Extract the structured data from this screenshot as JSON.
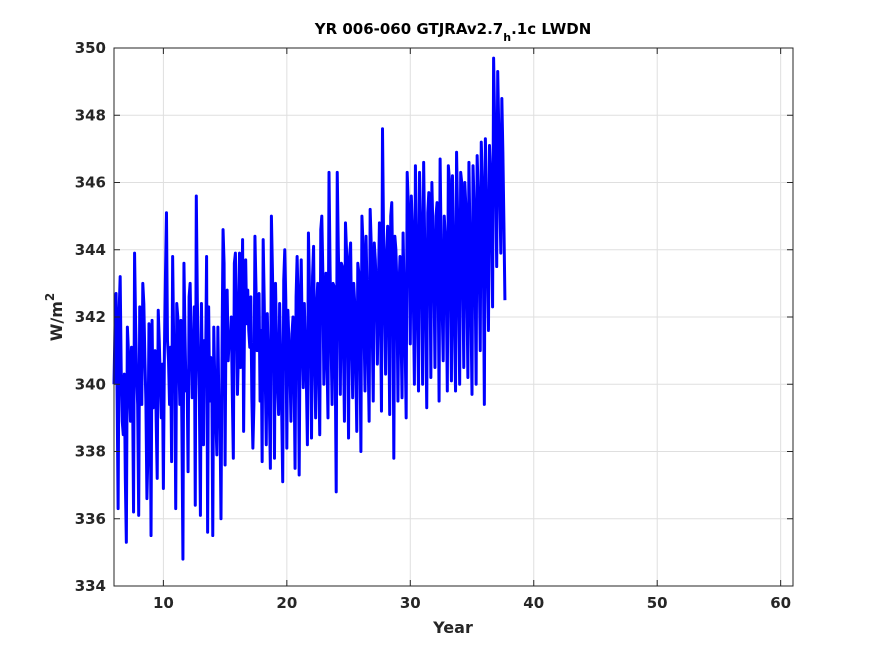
{
  "chart_data": {
    "type": "line",
    "title": {
      "pre": "YR 006-060 GTJRAv2.7",
      "sub": "h",
      "post": ".1c LWDN"
    },
    "xlabel": "Year",
    "ylabel": {
      "base": "W/m",
      "sup": "2"
    },
    "xlim": [
      6,
      61
    ],
    "ylim": [
      334,
      350
    ],
    "xticks": [
      10,
      20,
      30,
      40,
      50,
      60
    ],
    "yticks": [
      334,
      336,
      338,
      340,
      342,
      344,
      346,
      348,
      350
    ],
    "grid": true,
    "line_color": "#0000ff",
    "series": [
      {
        "sampling": "monthly",
        "x_start": 6,
        "x_step": 0.08333,
        "values": [
          340.0,
          341.8,
          342.7,
          339.8,
          336.3,
          342.2,
          343.2,
          340.4,
          338.9,
          338.5,
          340.3,
          337.2,
          335.3,
          341.7,
          341.0,
          339.8,
          338.9,
          341.1,
          340.0,
          336.2,
          343.9,
          341.8,
          340.3,
          339.4,
          336.1,
          342.3,
          340.6,
          339.4,
          343.0,
          342.4,
          340.8,
          339.5,
          336.6,
          338.0,
          341.8,
          341.0,
          335.5,
          341.9,
          339.3,
          340.9,
          341.0,
          338.9,
          337.2,
          342.2,
          341.3,
          340.1,
          339.0,
          340.6,
          336.9,
          341.0,
          343.2,
          345.1,
          341.3,
          340.7,
          339.4,
          341.1,
          337.7,
          343.8,
          341.3,
          341.0,
          336.3,
          342.4,
          342.0,
          340.8,
          339.4,
          341.9,
          338.7,
          334.8,
          343.6,
          341.5,
          339.8,
          340.4,
          337.4,
          342.6,
          343.0,
          341.2,
          339.6,
          340.1,
          342.3,
          336.4,
          345.6,
          342.5,
          340.9,
          339.5,
          336.1,
          342.4,
          339.8,
          338.2,
          341.3,
          340.4,
          343.8,
          335.6,
          342.3,
          339.5,
          340.8,
          340.6,
          335.5,
          341.7,
          340.0,
          339.0,
          337.9,
          341.7,
          339.2,
          339.1,
          336.0,
          341.0,
          344.6,
          343.6,
          337.6,
          342.7,
          342.8,
          340.7,
          341.4,
          341.2,
          342.0,
          339.7,
          337.8,
          343.6,
          343.9,
          342.2,
          339.7,
          341.0,
          343.9,
          340.5,
          341.7,
          344.3,
          338.6,
          342.5,
          343.7,
          341.8,
          342.8,
          341.6,
          341.1,
          342.6,
          339.6,
          338.1,
          339.4,
          344.4,
          342.9,
          341.0,
          342.5,
          342.7,
          339.5,
          341.6,
          337.7,
          344.3,
          342.5,
          340.3,
          338.2,
          342.1,
          340.8,
          339.4,
          337.5,
          345.0,
          343.4,
          341.5,
          337.8,
          343.0,
          341.2,
          340.0,
          339.1,
          342.4,
          340.8,
          339.2,
          337.1,
          343.1,
          344.0,
          342.5,
          338.1,
          342.2,
          341.3,
          340.6,
          338.9,
          341.5,
          342.0,
          340.4,
          337.5,
          342.6,
          343.8,
          342.4,
          337.3,
          342.1,
          343.7,
          341.3,
          339.9,
          342.4,
          341.1,
          340.1,
          338.2,
          344.5,
          342.9,
          341.3,
          338.4,
          343.2,
          344.1,
          340.8,
          339.0,
          342.3,
          343.0,
          340.4,
          338.5,
          344.6,
          345.0,
          343.3,
          340.0,
          341.6,
          343.3,
          340.8,
          339.0,
          346.3,
          343.5,
          341.3,
          339.4,
          343.0,
          342.9,
          340.7,
          336.8,
          346.3,
          344.1,
          342.4,
          339.7,
          343.6,
          343.5,
          341.2,
          338.9,
          344.8,
          344.0,
          341.6,
          338.4,
          343.8,
          344.2,
          341.4,
          339.6,
          343.0,
          342.4,
          340.6,
          338.6,
          343.6,
          343.3,
          341.4,
          338.0,
          345.0,
          344.2,
          341.8,
          339.8,
          344.4,
          342.7,
          340.8,
          338.9,
          345.2,
          344.2,
          341.7,
          339.5,
          344.2,
          343.7,
          342.8,
          340.6,
          342.9,
          344.8,
          342.4,
          339.2,
          347.6,
          344.5,
          342.2,
          340.3,
          343.9,
          344.7,
          342.1,
          339.1,
          345.0,
          345.4,
          343.1,
          337.8,
          344.4,
          344.0,
          342.9,
          339.5,
          342.8,
          343.8,
          341.6,
          339.6,
          344.5,
          342.7,
          341.2,
          339.0,
          346.3,
          345.4,
          344.3,
          341.2,
          345.6,
          344.7,
          342.5,
          340.0,
          346.5,
          344.4,
          342.0,
          339.8,
          346.3,
          344.9,
          343.2,
          340.0,
          346.6,
          344.2,
          342.1,
          339.3,
          345.1,
          345.7,
          344.1,
          340.2,
          346.0,
          344.6,
          343.3,
          340.5,
          345.0,
          345.4,
          343.8,
          339.5,
          346.7,
          344.1,
          342.3,
          340.7,
          345.0,
          344.4,
          342.8,
          339.8,
          346.5,
          346.1,
          343.0,
          340.1,
          346.2,
          344.3,
          341.7,
          339.8,
          346.9,
          345.0,
          342.6,
          340.0,
          346.3,
          346.0,
          343.5,
          340.5,
          346.0,
          345.3,
          342.9,
          340.2,
          346.6,
          344.4,
          342.1,
          339.7,
          346.5,
          345.4,
          343.3,
          340.0,
          346.8,
          345.7,
          343.5,
          341.0,
          347.2,
          346.1,
          343.9,
          339.4,
          347.3,
          345.5,
          343.6,
          341.6,
          347.1,
          346.3,
          344.8,
          342.3,
          349.7,
          347.8,
          346.2,
          343.5,
          349.3,
          347.6,
          345.7,
          343.9,
          348.5,
          346.9,
          344.8,
          342.5
        ]
      }
    ]
  }
}
